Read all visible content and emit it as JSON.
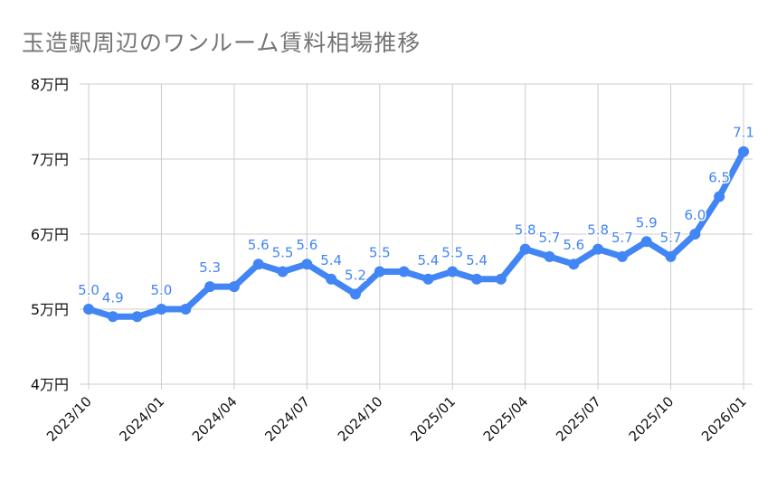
{
  "chart_data": {
    "type": "line",
    "title": "玉造駅周辺のワンルーム賃料相場推移",
    "xlabel": "",
    "ylabel": "",
    "ylim": [
      4,
      8
    ],
    "y_unit": "万円",
    "y_ticks": [
      "4万円",
      "5万円",
      "6万円",
      "7万円",
      "8万円"
    ],
    "x_tick_labels": [
      "2023/10",
      "2024/01",
      "2024/04",
      "2024/07",
      "2024/10",
      "2025/01",
      "2025/04",
      "2025/07",
      "2025/10",
      "2026/01"
    ],
    "grid": true,
    "legend": "none",
    "series_color": "#4285f4",
    "x": [
      "2023/10",
      "2023/11",
      "2023/12",
      "2024/01",
      "2024/02",
      "2024/03",
      "2024/04",
      "2024/05",
      "2024/06",
      "2024/07",
      "2024/08",
      "2024/09",
      "2024/10",
      "2024/11",
      "2024/12",
      "2025/01",
      "2025/02",
      "2025/03",
      "2025/04",
      "2025/05",
      "2025/06",
      "2025/07",
      "2025/08",
      "2025/09",
      "2025/10",
      "2025/11",
      "2025/12",
      "2026/01"
    ],
    "series": [
      {
        "name": "ワンルーム賃料相場",
        "values": [
          5.0,
          4.9,
          4.9,
          5.0,
          5.0,
          5.3,
          5.3,
          5.6,
          5.5,
          5.6,
          5.4,
          5.2,
          5.5,
          5.5,
          5.4,
          5.5,
          5.4,
          5.4,
          5.8,
          5.7,
          5.6,
          5.8,
          5.7,
          5.9,
          5.7,
          6.0,
          6.5,
          7.1
        ],
        "labeled": [
          true,
          true,
          false,
          true,
          false,
          true,
          false,
          true,
          true,
          true,
          true,
          true,
          true,
          false,
          true,
          true,
          true,
          false,
          true,
          true,
          true,
          true,
          true,
          true,
          true,
          true,
          true,
          true
        ]
      }
    ]
  }
}
